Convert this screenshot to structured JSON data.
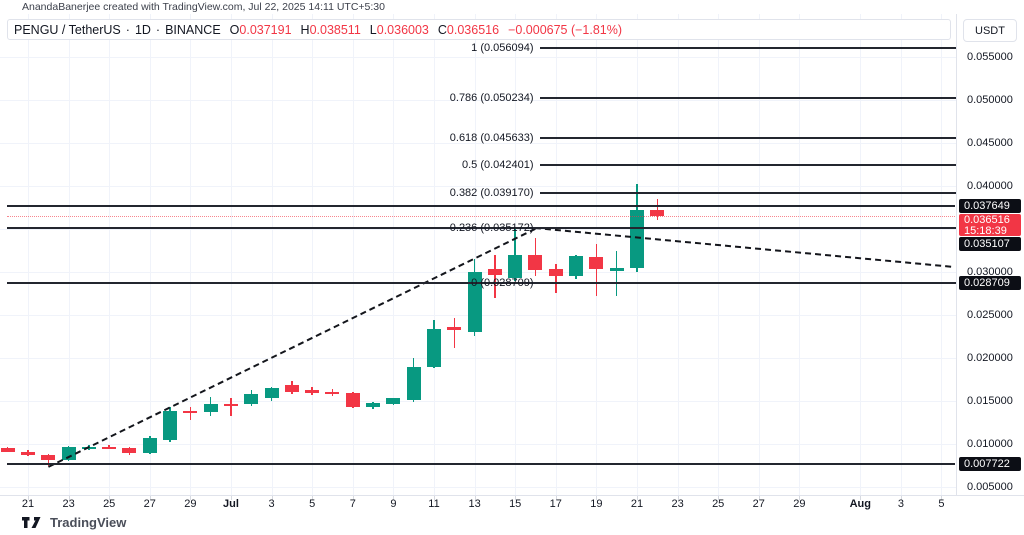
{
  "attribution": "AnandaBanerjee created with TradingView.com, Jul 22, 2025 14:11 UTC+5:30",
  "legend": {
    "symbol": "PENGU / TetherUS",
    "sep": "·",
    "interval": "1D",
    "exchange": "BINANCE",
    "o_label": "O",
    "o_value": "0.037191",
    "h_label": "H",
    "h_value": "0.038511",
    "l_label": "L",
    "l_value": "0.036003",
    "c_label": "C",
    "c_value": "0.036516",
    "change": "−0.000675 (−1.81%)"
  },
  "price_axis": {
    "currency": "USDT",
    "labels": [
      {
        "text": "0.055000",
        "price": 0.055
      },
      {
        "text": "0.050000",
        "price": 0.05
      },
      {
        "text": "0.045000",
        "price": 0.045
      },
      {
        "text": "0.040000",
        "price": 0.04
      },
      {
        "text": "0.030000",
        "price": 0.03
      },
      {
        "text": "0.025000",
        "price": 0.025
      },
      {
        "text": "0.020000",
        "price": 0.02
      },
      {
        "text": "0.015000",
        "price": 0.015
      },
      {
        "text": "0.010000",
        "price": 0.01
      },
      {
        "text": "0.005000",
        "price": 0.005
      }
    ],
    "badges": [
      {
        "text": "0.037649",
        "price": 0.037649,
        "type": "black"
      },
      {
        "text": "0.036516",
        "subtext": "15:18:39",
        "price": 0.036516,
        "type": "red"
      },
      {
        "text": "0.035107",
        "price": 0.035107,
        "type": "black"
      },
      {
        "text": "0.028709",
        "price": 0.028709,
        "type": "black"
      },
      {
        "text": "0.007722",
        "price": 0.007722,
        "type": "black"
      }
    ]
  },
  "time_axis": {
    "labels": [
      {
        "text": "21",
        "day": 1
      },
      {
        "text": "23",
        "day": 3
      },
      {
        "text": "25",
        "day": 5
      },
      {
        "text": "27",
        "day": 7
      },
      {
        "text": "29",
        "day": 9
      },
      {
        "text": "Jul",
        "day": 11,
        "bold": true
      },
      {
        "text": "3",
        "day": 13
      },
      {
        "text": "5",
        "day": 15
      },
      {
        "text": "7",
        "day": 17
      },
      {
        "text": "9",
        "day": 19
      },
      {
        "text": "11",
        "day": 21
      },
      {
        "text": "13",
        "day": 23
      },
      {
        "text": "15",
        "day": 25
      },
      {
        "text": "17",
        "day": 27
      },
      {
        "text": "19",
        "day": 29
      },
      {
        "text": "21",
        "day": 31
      },
      {
        "text": "23",
        "day": 33
      },
      {
        "text": "25",
        "day": 35
      },
      {
        "text": "27",
        "day": 37
      },
      {
        "text": "29",
        "day": 39
      },
      {
        "text": "Aug",
        "day": 42,
        "bold": true
      },
      {
        "text": "3",
        "day": 44
      },
      {
        "text": "5",
        "day": 46
      }
    ]
  },
  "footer": {
    "brand": "TradingView"
  },
  "chart_data": {
    "type": "candlestick",
    "symbol": "PENGU/USDT",
    "interval": "1D",
    "exchange": "BINANCE",
    "ylim": [
      0.00407,
      0.06
    ],
    "xlim": [
      -0.379,
      46.715
    ],
    "grid": {
      "h_prices": [
        0.005,
        0.01,
        0.015,
        0.02,
        0.025,
        0.03,
        0.035,
        0.04,
        0.045,
        0.05,
        0.055
      ],
      "v_days": [
        1,
        3,
        5,
        7,
        9,
        11,
        13,
        15,
        17,
        19,
        21,
        23,
        25,
        27,
        29,
        31,
        33,
        35,
        37,
        39,
        42,
        44,
        46
      ]
    },
    "colors": {
      "up": "#089981",
      "down": "#F23645"
    },
    "candles": [
      {
        "date": "Jun 20",
        "day": 0,
        "o": 0.0095,
        "h": 0.00965,
        "l": 0.00905,
        "c": 0.0091
      },
      {
        "date": "Jun 21",
        "day": 1,
        "o": 0.0091,
        "h": 0.0093,
        "l": 0.00855,
        "c": 0.0087
      },
      {
        "date": "Jun 22",
        "day": 2,
        "o": 0.0087,
        "h": 0.00885,
        "l": 0.00745,
        "c": 0.00815
      },
      {
        "date": "Jun 23",
        "day": 3,
        "o": 0.00815,
        "h": 0.00975,
        "l": 0.00805,
        "c": 0.00965
      },
      {
        "date": "Jun 24",
        "day": 4,
        "o": 0.00965,
        "h": 0.0099,
        "l": 0.00935,
        "c": 0.0097
      },
      {
        "date": "Jun 25",
        "day": 5,
        "o": 0.0097,
        "h": 0.00985,
        "l": 0.0094,
        "c": 0.0095
      },
      {
        "date": "Jun 26",
        "day": 6,
        "o": 0.0095,
        "h": 0.0096,
        "l": 0.00875,
        "c": 0.0089
      },
      {
        "date": "Jun 27",
        "day": 7,
        "o": 0.0089,
        "h": 0.0109,
        "l": 0.0088,
        "c": 0.0107
      },
      {
        "date": "Jun 28",
        "day": 8,
        "o": 0.0105,
        "h": 0.0143,
        "l": 0.0102,
        "c": 0.0138
      },
      {
        "date": "Jun 29",
        "day": 9,
        "o": 0.0138,
        "h": 0.0143,
        "l": 0.0128,
        "c": 0.01375
      },
      {
        "date": "Jun 30",
        "day": 10,
        "o": 0.01375,
        "h": 0.0155,
        "l": 0.0133,
        "c": 0.0147
      },
      {
        "date": "Jul 1",
        "day": 11,
        "o": 0.0147,
        "h": 0.0153,
        "l": 0.0133,
        "c": 0.01465
      },
      {
        "date": "Jul 2",
        "day": 12,
        "o": 0.01465,
        "h": 0.0163,
        "l": 0.0144,
        "c": 0.0158
      },
      {
        "date": "Jul 3",
        "day": 13,
        "o": 0.0153,
        "h": 0.0166,
        "l": 0.015,
        "c": 0.0165
      },
      {
        "date": "Jul 4",
        "day": 14,
        "o": 0.0169,
        "h": 0.0173,
        "l": 0.0158,
        "c": 0.0161
      },
      {
        "date": "Jul 5",
        "day": 15,
        "o": 0.0163,
        "h": 0.0166,
        "l": 0.0157,
        "c": 0.0159
      },
      {
        "date": "Jul 6",
        "day": 16,
        "o": 0.0161,
        "h": 0.0164,
        "l": 0.0156,
        "c": 0.01605
      },
      {
        "date": "Jul 7",
        "day": 17,
        "o": 0.0159,
        "h": 0.0161,
        "l": 0.0142,
        "c": 0.0143
      },
      {
        "date": "Jul 8",
        "day": 18,
        "o": 0.0143,
        "h": 0.0149,
        "l": 0.0141,
        "c": 0.01475
      },
      {
        "date": "Jul 9",
        "day": 19,
        "o": 0.0147,
        "h": 0.0154,
        "l": 0.0145,
        "c": 0.0153
      },
      {
        "date": "Jul 10",
        "day": 20,
        "o": 0.0151,
        "h": 0.02,
        "l": 0.0149,
        "c": 0.019
      },
      {
        "date": "Jul 11",
        "day": 21,
        "o": 0.019,
        "h": 0.0244,
        "l": 0.0188,
        "c": 0.0234
      },
      {
        "date": "Jul 12",
        "day": 22,
        "o": 0.0236,
        "h": 0.0247,
        "l": 0.0212,
        "c": 0.0232
      },
      {
        "date": "Jul 13",
        "day": 23,
        "o": 0.023,
        "h": 0.0315,
        "l": 0.0226,
        "c": 0.03
      },
      {
        "date": "Jul 14",
        "day": 24,
        "o": 0.0303,
        "h": 0.032,
        "l": 0.027,
        "c": 0.0297
      },
      {
        "date": "Jul 15",
        "day": 25,
        "o": 0.0293,
        "h": 0.0352,
        "l": 0.029,
        "c": 0.032
      },
      {
        "date": "Jul 16",
        "day": 26,
        "o": 0.032,
        "h": 0.034,
        "l": 0.0295,
        "c": 0.0302
      },
      {
        "date": "Jul 17",
        "day": 27,
        "o": 0.0303,
        "h": 0.0309,
        "l": 0.0275,
        "c": 0.0295
      },
      {
        "date": "Jul 18",
        "day": 28,
        "o": 0.0295,
        "h": 0.032,
        "l": 0.0292,
        "c": 0.0319
      },
      {
        "date": "Jul 19",
        "day": 29,
        "o": 0.0318,
        "h": 0.0333,
        "l": 0.0272,
        "c": 0.0303
      },
      {
        "date": "Jul 20",
        "day": 30,
        "o": 0.0301,
        "h": 0.0325,
        "l": 0.0272,
        "c": 0.0305
      },
      {
        "date": "Jul 21",
        "day": 31,
        "o": 0.0305,
        "h": 0.0402,
        "l": 0.03,
        "c": 0.0372
      },
      {
        "date": "Jul 22",
        "day": 32,
        "o": 0.037191,
        "h": 0.038511,
        "l": 0.036003,
        "c": 0.036516
      }
    ],
    "fib_from_day": 26.2,
    "fib_to_day": 46.7,
    "fib_levels": [
      {
        "label": "1 (0.056094)",
        "price": 0.056094
      },
      {
        "label": "0.786 (0.050234)",
        "price": 0.050234
      },
      {
        "label": "0.618 (0.045633)",
        "price": 0.045633
      },
      {
        "label": "0.5 (0.042401)",
        "price": 0.042401
      },
      {
        "label": "0.382 (0.039170)",
        "price": 0.03917
      },
      {
        "label": "0.236 (0.035172)",
        "price": 0.035172
      },
      {
        "label": "0 (0.028709)",
        "price": 0.028709
      }
    ],
    "horizontal_rays": [
      {
        "price": 0.037649
      },
      {
        "price": 0.035107
      },
      {
        "price": 0.028709
      },
      {
        "price": 0.007722
      }
    ],
    "current_price": 0.036516,
    "trendlines": [
      {
        "from_day": 2,
        "from_price": 0.0075,
        "to_day": 26,
        "to_price": 0.0352
      },
      {
        "from_day": 26,
        "from_price": 0.0352,
        "to_day": 46.5,
        "to_price": 0.0307
      }
    ]
  }
}
